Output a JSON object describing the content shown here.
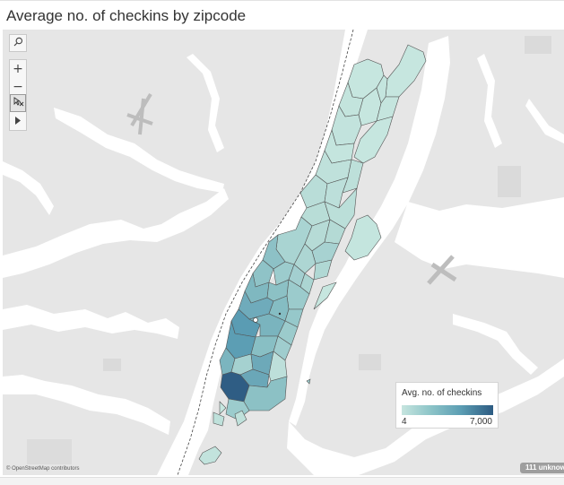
{
  "title": "Average no. of checkins by zipcode",
  "legend": {
    "title": "Avg. no. of checkins",
    "min_label": "4",
    "max_label": "7,000",
    "min_value": 4,
    "max_value": 7000,
    "color_low": "#c6e5df",
    "color_high": "#2d5b82"
  },
  "attribution": "© OpenStreetMap contributors",
  "unknown_badge": "111 unknown",
  "toolbar": {
    "search_icon": "search-icon",
    "zoom_in_label": "+",
    "zoom_out_label": "−",
    "select_icon": "pin-select-icon",
    "expand_icon": "triangle-right-icon"
  },
  "colors": {
    "land": "#e6e6e6",
    "water": "#ffffff",
    "park": "#dcdcdc",
    "border": "#3d3d3d"
  }
}
